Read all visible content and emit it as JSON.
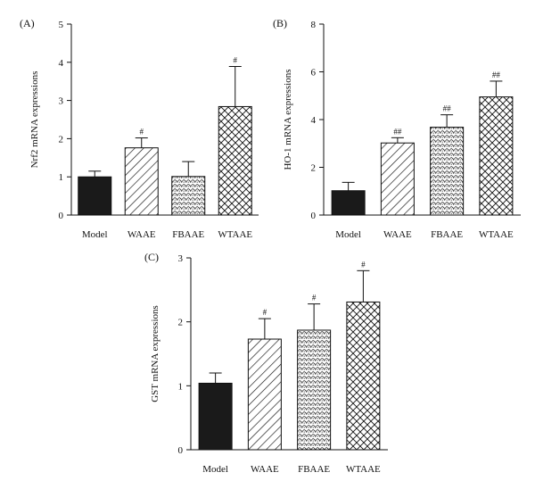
{
  "chart_data": [
    {
      "panel_label": "(A)",
      "type": "bar",
      "categories": [
        "Model",
        "WAAE",
        "FBAAE",
        "WTAAE"
      ],
      "values": [
        1.0,
        1.76,
        1.01,
        2.84
      ],
      "errors": [
        0.15,
        0.26,
        0.39,
        1.05
      ],
      "significance": [
        "",
        "#",
        "",
        "#"
      ],
      "patterns": [
        "solid",
        "diagonal",
        "dots",
        "crosshatch"
      ],
      "ylabel": "Nrf2 mRNA expressions",
      "xlabel": "",
      "ylim": [
        0,
        5
      ],
      "yticks": [
        "0",
        "1",
        "2",
        "3",
        "4",
        "5"
      ]
    },
    {
      "panel_label": "(B)",
      "type": "bar",
      "categories": [
        "Model",
        "WAAE",
        "FBAAE",
        "WTAAE"
      ],
      "values": [
        1.02,
        3.02,
        3.68,
        4.95
      ],
      "errors": [
        0.35,
        0.22,
        0.52,
        0.66
      ],
      "significance": [
        "",
        "##",
        "##",
        "##"
      ],
      "patterns": [
        "solid",
        "diagonal",
        "dots",
        "crosshatch"
      ],
      "ylabel": "HO-1 mRNA expressions",
      "xlabel": "",
      "ylim": [
        0,
        8
      ],
      "yticks": [
        "0",
        "2",
        "4",
        "6",
        "8"
      ]
    },
    {
      "panel_label": "(C)",
      "type": "bar",
      "categories": [
        "Model",
        "WAAE",
        "FBAAE",
        "WTAAE"
      ],
      "values": [
        1.04,
        1.73,
        1.87,
        2.31
      ],
      "errors": [
        0.16,
        0.32,
        0.41,
        0.49
      ],
      "significance": [
        "",
        "#",
        "#",
        "#"
      ],
      "patterns": [
        "solid",
        "diagonal",
        "dots",
        "crosshatch"
      ],
      "ylabel": "GST mRNA expressions",
      "xlabel": "",
      "ylim": [
        0,
        3
      ],
      "yticks": [
        "0",
        "1",
        "2",
        "3"
      ]
    }
  ]
}
